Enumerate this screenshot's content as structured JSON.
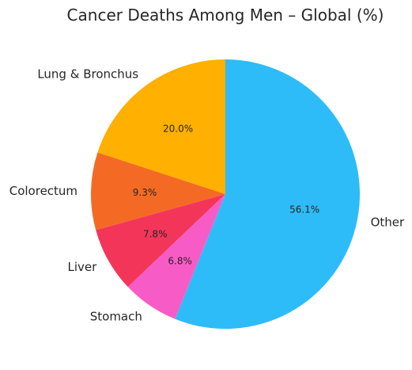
{
  "chart_data": {
    "type": "pie",
    "title": "Cancer Deaths Among Men – Global (%)",
    "categories": [
      "Lung & Bronchus",
      "Colorectum",
      "Liver",
      "Stomach",
      "Other"
    ],
    "values": [
      20.0,
      9.3,
      7.8,
      6.8,
      56.1
    ],
    "value_labels": [
      "20.0%",
      "9.3%",
      "7.8%",
      "6.8%",
      "56.1%"
    ],
    "colors": [
      "#FFB000",
      "#F46A25",
      "#F4355A",
      "#F75CC6",
      "#2DBCF8"
    ],
    "start_angle_deg": 90,
    "direction": "counterclockwise",
    "legend": "none"
  }
}
